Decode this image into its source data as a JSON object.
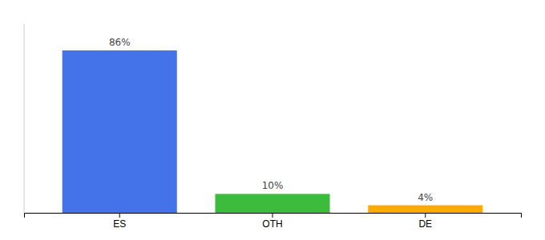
{
  "chart_data": {
    "type": "bar",
    "categories": [
      "ES",
      "OTH",
      "DE"
    ],
    "values": [
      86,
      10,
      4
    ],
    "value_labels": [
      "86%",
      "10%",
      "4%"
    ],
    "data_labels": true,
    "colors": [
      "#4472e8",
      "#3dbb3d",
      "#ffaa00"
    ],
    "ylim": [
      0,
      100
    ],
    "tick_labels": "x"
  }
}
